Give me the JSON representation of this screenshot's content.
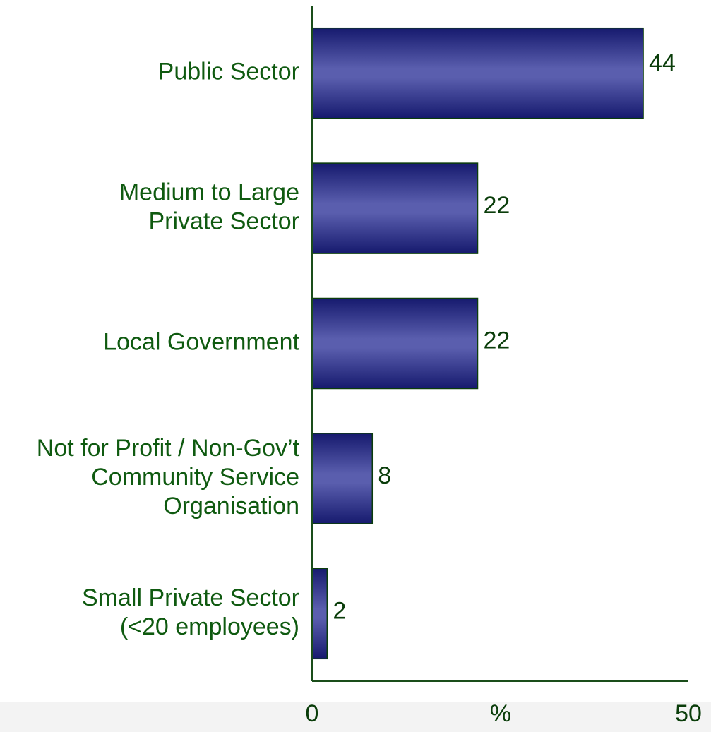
{
  "chart_data": {
    "type": "bar",
    "orientation": "horizontal",
    "categories": [
      [
        "Public Sector"
      ],
      [
        "Medium to Large",
        "Private Sector"
      ],
      [
        "Local Government"
      ],
      [
        "Not for Profit / Non-Gov’t",
        "Community Service",
        "Organisation"
      ],
      [
        "Small Private Sector",
        "(<20 employees)"
      ]
    ],
    "values": [
      44,
      22,
      22,
      8,
      2
    ],
    "data_labels": [
      "44",
      "22",
      "22",
      "8",
      "2"
    ],
    "xlim": [
      0,
      50
    ],
    "x_tick_labels": [
      "0",
      "50"
    ],
    "xlabel": "%",
    "grid": false,
    "legend": "none",
    "colors": {
      "bar_dark": "#191970",
      "bar_light": "#5b5fb0",
      "text": "#0f5a10",
      "axis": "#1a4d1a"
    }
  }
}
